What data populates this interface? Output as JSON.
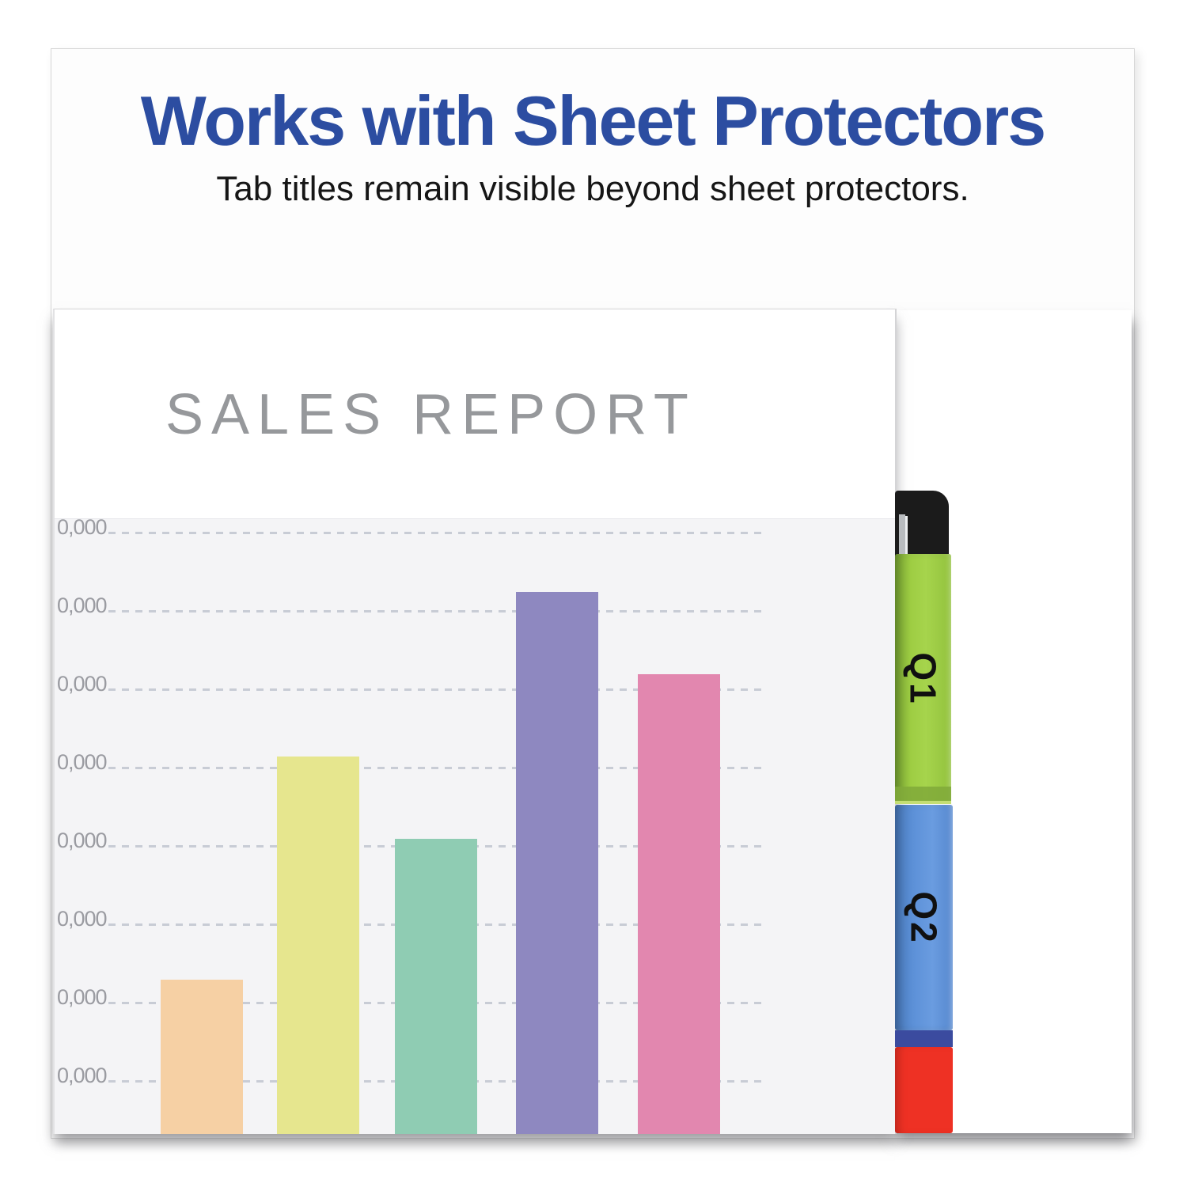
{
  "banner": {
    "headline": "Works with Sheet Protectors",
    "subheadline": "Tab titles remain visible beyond sheet protectors.",
    "headline_color": "#2c4da1"
  },
  "document": {
    "title": "SALES REPORT"
  },
  "chart_data": {
    "type": "bar",
    "title": "SALES REPORT",
    "categories": [
      "",
      "",
      "",
      "",
      ""
    ],
    "values": [
      22500,
      51000,
      40500,
      72000,
      61500
    ],
    "bar_colors": [
      "#f6d0a4",
      "#e6e68e",
      "#8fccb3",
      "#8e88c0",
      "#e287af"
    ],
    "xlabel": "",
    "ylabel": "",
    "y_axis": {
      "tick_labels": [
        "0,000",
        "0,000",
        "0,000",
        "0,000",
        "0,000",
        "0,000",
        "0,000",
        "0,000"
      ],
      "tick_step_estimate": 10000,
      "range_estimate": [
        10000,
        80000
      ],
      "note": "leading digits of tick labels are cropped by the image edge"
    },
    "grid": "horizontal dashed gridlines",
    "legend": "none",
    "layout": "bars cropped at bottom edge of page; plot background light gray"
  },
  "tabs": [
    {
      "label": "Q1",
      "color": "#9ecd43"
    },
    {
      "label": "Q2",
      "color": "#5e92d9"
    },
    {
      "label": "",
      "color": "#ee3124"
    }
  ],
  "colors": {
    "plot_background": "#f4f4f6",
    "gridline": "#c8ccd5",
    "tick_label": "#9a9ba1",
    "doc_title": "#96989b",
    "binder_corner": "#1b1b1b",
    "navy_band": "#3b4b9f"
  }
}
